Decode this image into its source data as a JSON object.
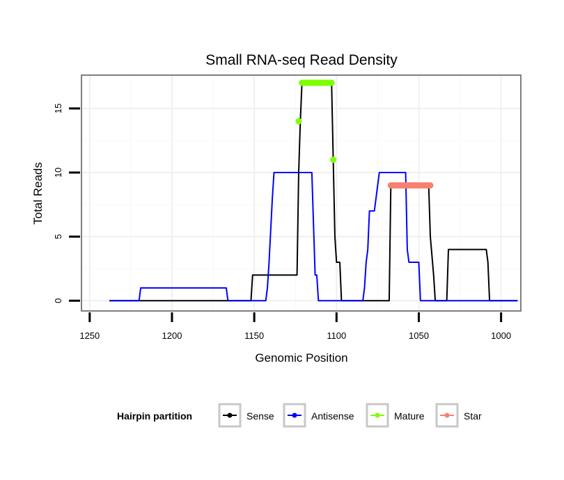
{
  "chart_data": {
    "type": "line",
    "title": "Small RNA-seq Read Density",
    "xlabel": "Genomic Position",
    "ylabel": "Total Reads",
    "xlim": [
      1255,
      988
    ],
    "x_reversed": true,
    "ylim": [
      -0.8,
      17.6
    ],
    "xticks": [
      1250,
      1200,
      1150,
      1100,
      1050,
      1000
    ],
    "yticks": [
      0,
      5,
      10,
      15
    ],
    "grid": true,
    "legend": {
      "title": "Hairpin partition",
      "placement": "bottom",
      "entries": [
        "Sense",
        "Antisense",
        "Mature",
        "Star"
      ]
    },
    "series": [
      {
        "name": "Sense",
        "color": "#000000",
        "kind": "line",
        "points": [
          [
            1238,
            0
          ],
          [
            1152,
            0
          ],
          [
            1151,
            2
          ],
          [
            1124,
            2
          ],
          [
            1123,
            10
          ],
          [
            1122,
            14
          ],
          [
            1121,
            17
          ],
          [
            1103,
            17
          ],
          [
            1102,
            11
          ],
          [
            1101,
            5
          ],
          [
            1100,
            3
          ],
          [
            1098,
            3
          ],
          [
            1097,
            0
          ],
          [
            1068,
            0
          ],
          [
            1067,
            9
          ],
          [
            1044,
            9
          ],
          [
            1043,
            5
          ],
          [
            1041,
            2
          ],
          [
            1040,
            0
          ],
          [
            1033,
            0
          ],
          [
            1032,
            4
          ],
          [
            1009,
            4
          ],
          [
            1008,
            3
          ],
          [
            1007,
            0
          ],
          [
            990,
            0
          ]
        ]
      },
      {
        "name": "Antisense",
        "color": "#0000ff",
        "kind": "line",
        "points": [
          [
            1238,
            0
          ],
          [
            1220,
            0
          ],
          [
            1219,
            1
          ],
          [
            1167,
            1
          ],
          [
            1166,
            0
          ],
          [
            1143,
            0
          ],
          [
            1142,
            1
          ],
          [
            1141,
            3
          ],
          [
            1139,
            8
          ],
          [
            1138,
            10
          ],
          [
            1115,
            10
          ],
          [
            1114,
            6
          ],
          [
            1113,
            2
          ],
          [
            1112,
            2
          ],
          [
            1111,
            0
          ],
          [
            1084,
            0
          ],
          [
            1083,
            1
          ],
          [
            1082,
            3
          ],
          [
            1081,
            4
          ],
          [
            1080,
            7
          ],
          [
            1077,
            7
          ],
          [
            1076,
            8
          ],
          [
            1075,
            9
          ],
          [
            1074,
            10
          ],
          [
            1058,
            10
          ],
          [
            1057,
            4
          ],
          [
            1056,
            3
          ],
          [
            1050,
            3
          ],
          [
            1049,
            0
          ],
          [
            1031,
            0
          ],
          [
            1030,
            0
          ],
          [
            990,
            0
          ]
        ]
      },
      {
        "name": "Mature",
        "color": "#7fff00",
        "kind": "markers",
        "points": [
          [
            1123,
            14
          ],
          [
            1121,
            17
          ],
          [
            1120,
            17
          ],
          [
            1119,
            17
          ],
          [
            1118,
            17
          ],
          [
            1117,
            17
          ],
          [
            1116,
            17
          ],
          [
            1115,
            17
          ],
          [
            1114,
            17
          ],
          [
            1113,
            17
          ],
          [
            1112,
            17
          ],
          [
            1111,
            17
          ],
          [
            1110,
            17
          ],
          [
            1109,
            17
          ],
          [
            1108,
            17
          ],
          [
            1107,
            17
          ],
          [
            1106,
            17
          ],
          [
            1105,
            17
          ],
          [
            1104,
            17
          ],
          [
            1103,
            17
          ],
          [
            1102,
            11
          ]
        ]
      },
      {
        "name": "Star",
        "color": "#f88070",
        "kind": "markers",
        "points": [
          [
            1067,
            9
          ],
          [
            1066,
            9
          ],
          [
            1065,
            9
          ],
          [
            1064,
            9
          ],
          [
            1063,
            9
          ],
          [
            1062,
            9
          ],
          [
            1061,
            9
          ],
          [
            1060,
            9
          ],
          [
            1059,
            9
          ],
          [
            1058,
            9
          ],
          [
            1057,
            9
          ],
          [
            1056,
            9
          ],
          [
            1055,
            9
          ],
          [
            1054,
            9
          ],
          [
            1053,
            9
          ],
          [
            1052,
            9
          ],
          [
            1051,
            9
          ],
          [
            1050,
            9
          ],
          [
            1049,
            9
          ],
          [
            1048,
            9
          ],
          [
            1047,
            9
          ],
          [
            1046,
            9
          ],
          [
            1045,
            9
          ],
          [
            1044,
            9
          ],
          [
            1043,
            9
          ]
        ]
      }
    ]
  }
}
